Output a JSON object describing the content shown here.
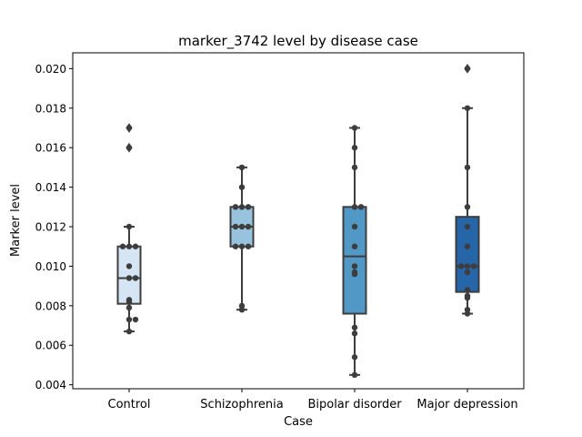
{
  "chart_data": {
    "type": "box",
    "title": "marker_3742 level by disease case",
    "xlabel": "Case",
    "ylabel": "Marker level",
    "ylim": [
      0.0038,
      0.0208
    ],
    "yticks": [
      "0.004",
      "0.006",
      "0.008",
      "0.010",
      "0.012",
      "0.014",
      "0.016",
      "0.018",
      "0.020"
    ],
    "grid": false,
    "legend": "none",
    "categories": [
      "Control",
      "Schizophrenia",
      "Bipolar disorder",
      "Major depression"
    ],
    "boxes": [
      {
        "q1": 0.0081,
        "median": 0.0094,
        "q3": 0.011,
        "whisker_low": 0.0067,
        "whisker_high": 0.012,
        "outliers": [
          0.016,
          0.017
        ],
        "color": "#d5e5f3"
      },
      {
        "q1": 0.011,
        "median": 0.012,
        "q3": 0.013,
        "whisker_low": 0.0078,
        "whisker_high": 0.015,
        "outliers": [],
        "color": "#97c3de"
      },
      {
        "q1": 0.0076,
        "median": 0.0105,
        "q3": 0.013,
        "whisker_low": 0.0045,
        "whisker_high": 0.017,
        "outliers": [],
        "color": "#5298c6"
      },
      {
        "q1": 0.0087,
        "median": 0.01,
        "q3": 0.0125,
        "whisker_low": 0.0076,
        "whisker_high": 0.018,
        "outliers": [
          0.02
        ],
        "color": "#2565a8"
      }
    ],
    "points": [
      [
        0.0067,
        0.0073,
        0.0073,
        0.0079,
        0.0082,
        0.0083,
        0.0094,
        0.0094,
        0.01,
        0.011,
        0.011,
        0.011,
        0.012,
        0.016,
        0.017
      ],
      [
        0.0078,
        0.008,
        0.011,
        0.011,
        0.011,
        0.012,
        0.012,
        0.012,
        0.013,
        0.013,
        0.013,
        0.014,
        0.015
      ],
      [
        0.0045,
        0.0054,
        0.0066,
        0.0069,
        0.0096,
        0.0097,
        0.01,
        0.011,
        0.012,
        0.013,
        0.013,
        0.015,
        0.016,
        0.017
      ],
      [
        0.0076,
        0.0078,
        0.0084,
        0.0085,
        0.0088,
        0.0097,
        0.01,
        0.01,
        0.01,
        0.011,
        0.012,
        0.013,
        0.015,
        0.018,
        0.02
      ]
    ]
  }
}
